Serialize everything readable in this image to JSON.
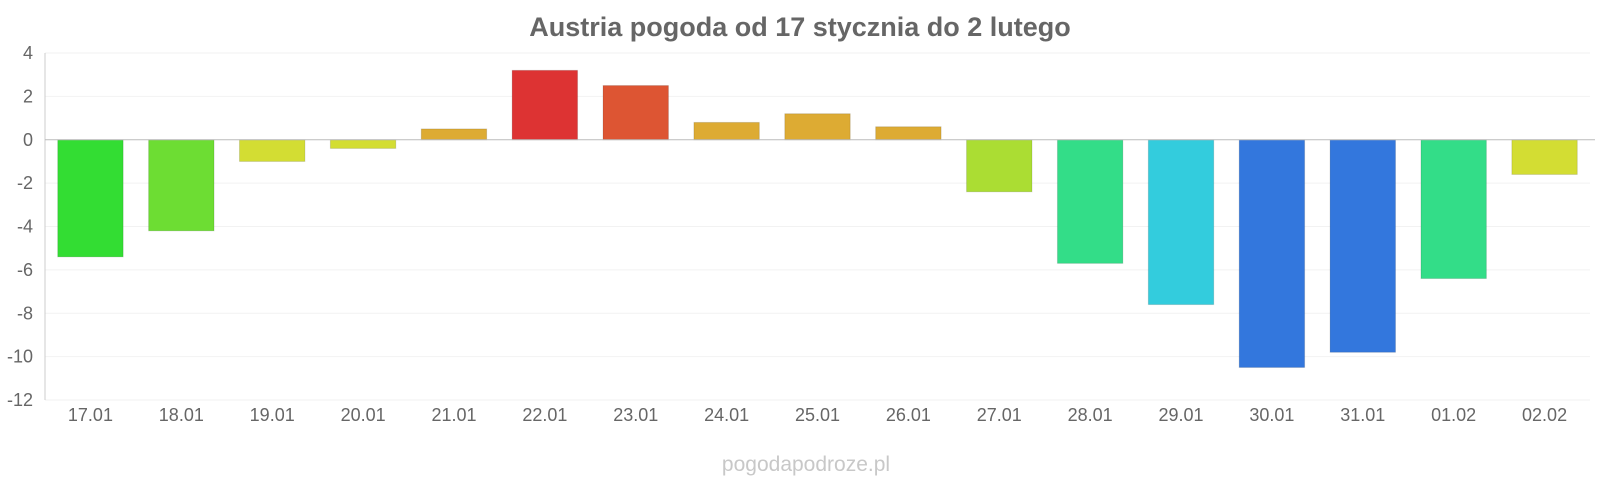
{
  "watermark": "pogodapodroze.pl",
  "chart_data": {
    "type": "bar",
    "title": "Austria pogoda od 17 stycznia do 2 lutego",
    "xlabel": "",
    "ylabel": "",
    "ylim": [
      -12,
      4
    ],
    "yticks": [
      4,
      2,
      0,
      -2,
      -4,
      -6,
      -8,
      -10,
      -12
    ],
    "grid": true,
    "legend": "none",
    "categories": [
      "17.01",
      "18.01",
      "19.01",
      "20.01",
      "21.01",
      "22.01",
      "23.01",
      "24.01",
      "25.01",
      "26.01",
      "27.01",
      "28.01",
      "29.01",
      "30.01",
      "31.01",
      "01.02",
      "02.02"
    ],
    "values": [
      -5.4,
      -4.2,
      -1.0,
      -0.4,
      0.5,
      3.2,
      2.5,
      0.8,
      1.2,
      0.6,
      -2.4,
      -5.7,
      -7.6,
      -10.5,
      -9.8,
      -6.4,
      -1.6
    ],
    "colors": [
      "#33dd33",
      "#6ddd33",
      "#d3dd33",
      "#d3dd33",
      "#ddab33",
      "#dd3333",
      "#dd5533",
      "#ddab33",
      "#ddab33",
      "#ddab33",
      "#abdd33",
      "#33dd88",
      "#33ccdd",
      "#3377dd",
      "#3377dd",
      "#33dd88",
      "#d3dd33"
    ]
  }
}
